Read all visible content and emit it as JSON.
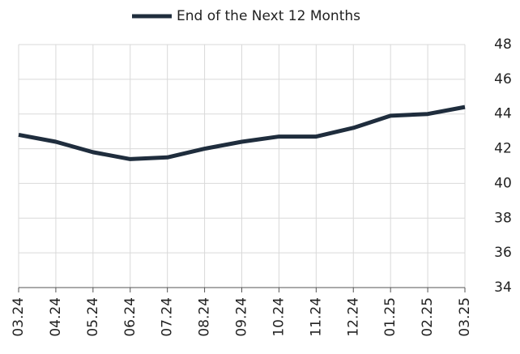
{
  "chart_data": {
    "type": "line",
    "categories": [
      "03.24",
      "04.24",
      "05.24",
      "06.24",
      "07.24",
      "08.24",
      "09.24",
      "10.24",
      "11.24",
      "12.24",
      "01.25",
      "02.25",
      "03.25"
    ],
    "series": [
      {
        "name": "End of the Next 12 Months",
        "color": "#1f2d3d",
        "values": [
          42.8,
          42.4,
          41.8,
          41.4,
          41.5,
          42.0,
          42.4,
          42.7,
          42.7,
          43.2,
          43.9,
          44.0,
          44.4
        ]
      }
    ],
    "ylim": [
      34,
      48
    ],
    "yticks": [
      34,
      36,
      38,
      40,
      42,
      44,
      46,
      48
    ],
    "grid": true,
    "legend": "top"
  }
}
